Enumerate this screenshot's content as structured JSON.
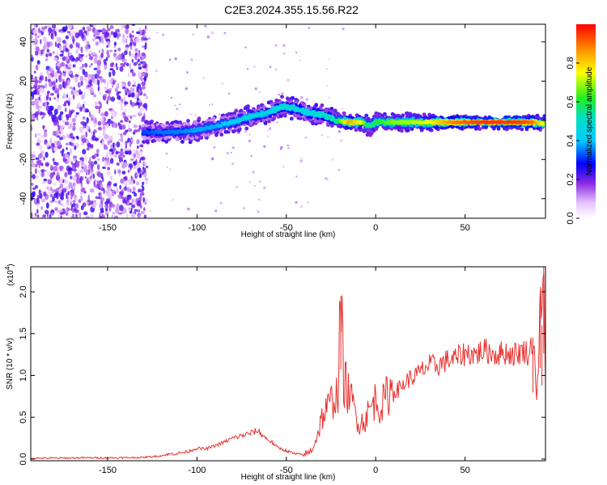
{
  "figure": {
    "title": "C2E3.2024.355.15.56.R22"
  },
  "chart_data": [
    {
      "type": "heatmap",
      "xlabel": "Height of straight line (km)",
      "ylabel": "Frequency (Hz)",
      "xlim": [
        -193,
        95
      ],
      "ylim": [
        -50,
        49
      ],
      "xticks": [
        -150,
        -100,
        -50,
        0,
        50
      ],
      "yticks": [
        -40,
        -20,
        0,
        20,
        40
      ],
      "colorbar": {
        "label": "Normalized spectral amplitude",
        "range": [
          0.0,
          1.0
        ],
        "ticks": [
          0.0,
          0.2,
          0.4,
          0.6,
          0.8
        ],
        "tick_labels": [
          "0.0",
          "0.2",
          "0.4",
          "0.6",
          "0.8"
        ],
        "colormap": "rainbow (white-purple-blue-cyan-green-yellow-red)"
      },
      "noise_region": {
        "x_range": [
          -193,
          -128
        ],
        "y_range": [
          -50,
          49
        ],
        "amplitude": [
          0.05,
          0.25
        ]
      },
      "ridge": [
        {
          "x": -130,
          "y": -6,
          "amplitude": 0.32
        },
        {
          "x": -120,
          "y": -6,
          "amplitude": 0.35
        },
        {
          "x": -110,
          "y": -6,
          "amplitude": 0.35
        },
        {
          "x": -100,
          "y": -5,
          "amplitude": 0.38
        },
        {
          "x": -90,
          "y": -3,
          "amplitude": 0.38
        },
        {
          "x": -80,
          "y": -1,
          "amplitude": 0.42
        },
        {
          "x": -70,
          "y": 2,
          "amplitude": 0.45
        },
        {
          "x": -60,
          "y": 4,
          "amplitude": 0.45
        },
        {
          "x": -52,
          "y": 7,
          "amplitude": 0.5
        },
        {
          "x": -45,
          "y": 6,
          "amplitude": 0.48
        },
        {
          "x": -38,
          "y": 4,
          "amplitude": 0.48
        },
        {
          "x": -30,
          "y": 3,
          "amplitude": 0.5
        },
        {
          "x": -22,
          "y": 0,
          "amplitude": 0.55
        },
        {
          "x": -15,
          "y": -1,
          "amplitude": 0.85
        },
        {
          "x": -8,
          "y": -1,
          "amplitude": 0.75
        },
        {
          "x": -4,
          "y": -3,
          "amplitude": 0.55
        },
        {
          "x": 0,
          "y": -1,
          "amplitude": 0.6
        },
        {
          "x": 10,
          "y": -1,
          "amplitude": 0.68
        },
        {
          "x": 20,
          "y": -1,
          "amplitude": 0.7
        },
        {
          "x": 30,
          "y": -1,
          "amplitude": 0.75
        },
        {
          "x": 40,
          "y": -1,
          "amplitude": 0.85
        },
        {
          "x": 50,
          "y": -1,
          "amplitude": 0.92
        },
        {
          "x": 60,
          "y": -1,
          "amplitude": 0.95
        },
        {
          "x": 70,
          "y": -1,
          "amplitude": 0.95
        },
        {
          "x": 80,
          "y": -1,
          "amplitude": 0.95
        },
        {
          "x": 88,
          "y": -1,
          "amplitude": 0.9
        },
        {
          "x": 95,
          "y": -2,
          "amplitude": 0.7
        }
      ]
    },
    {
      "type": "line",
      "xlabel": "Height of straight line (km)",
      "ylabel": "SNR (10 * v/v)",
      "y_multiplier_label": "(x10",
      "y_multiplier_exponent": "4",
      "y_multiplier_close": ")",
      "xlim": [
        -193,
        95
      ],
      "ylim": [
        -0.02,
        2.3
      ],
      "xticks": [
        -150,
        -100,
        -50,
        0,
        50
      ],
      "yticks": [
        0.0,
        0.5,
        1.0,
        1.5,
        2.0
      ],
      "ytick_labels": [
        "0.0",
        "0.5",
        "1.0",
        "1.5",
        "2.0"
      ],
      "line_color": "#e8302e",
      "series": [
        {
          "x": [
            -193,
            -180,
            -165,
            -150,
            -140,
            -130,
            -120,
            -115,
            -110,
            -105,
            -100,
            -95,
            -90,
            -85,
            -80,
            -75,
            -70,
            -66,
            -62,
            -58,
            -55,
            -50,
            -45,
            -40,
            -36,
            -33,
            -30,
            -27,
            -24,
            -21,
            -19.5,
            -18,
            -15,
            -12,
            -9,
            -6,
            -3,
            0,
            3,
            6,
            9,
            12,
            15,
            18,
            21,
            24,
            27,
            30,
            35,
            40,
            45,
            48,
            52,
            56,
            60,
            64,
            68,
            72,
            76,
            80,
            83,
            86,
            88,
            89,
            90,
            91,
            92,
            93,
            94,
            95
          ],
          "y": [
            0.01,
            0.012,
            0.015,
            0.016,
            0.016,
            0.02,
            0.04,
            0.06,
            0.07,
            0.09,
            0.13,
            0.12,
            0.16,
            0.2,
            0.25,
            0.28,
            0.31,
            0.34,
            0.26,
            0.2,
            0.14,
            0.1,
            0.06,
            0.05,
            0.1,
            0.26,
            0.5,
            0.6,
            0.72,
            0.8,
            1.95,
            0.95,
            0.78,
            0.6,
            0.42,
            0.48,
            0.6,
            0.72,
            0.62,
            0.75,
            0.85,
            0.82,
            0.88,
            0.95,
            0.98,
            1.02,
            1.08,
            1.12,
            1.12,
            1.18,
            1.2,
            1.25,
            1.27,
            1.25,
            1.3,
            1.28,
            1.25,
            1.28,
            1.25,
            1.27,
            1.3,
            1.25,
            1.45,
            1.2,
            0.75,
            1.05,
            1.98,
            1.6,
            2.3,
            1.0
          ]
        }
      ]
    }
  ]
}
